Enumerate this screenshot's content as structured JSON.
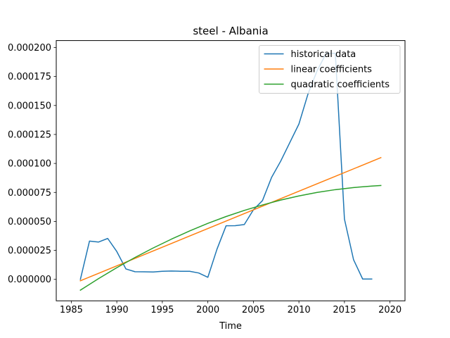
{
  "chart_data": {
    "type": "line",
    "title": "steel - Albania",
    "xlabel": "Time",
    "ylabel": "",
    "xlim": [
      1983.35,
      2021.65
    ],
    "ylim": [
      -1.85e-05,
      0.000206
    ],
    "xticks": [
      1985,
      1990,
      1995,
      2000,
      2005,
      2010,
      2015,
      2020
    ],
    "xtick_labels": [
      "1985",
      "1990",
      "1995",
      "2000",
      "2005",
      "2010",
      "2015",
      "2020"
    ],
    "yticks": [
      0.0,
      2.5e-05,
      5e-05,
      7.5e-05,
      0.0001,
      0.000125,
      0.00015,
      0.000175,
      0.0002
    ],
    "ytick_labels": [
      "0.000000",
      "0.000025",
      "0.000050",
      "0.000075",
      "0.000100",
      "0.000125",
      "0.000150",
      "0.000175",
      "0.000200"
    ],
    "grid": false,
    "legend_position": "top-right",
    "series": [
      {
        "name": "historical data",
        "color": "#1f77b4",
        "x": [
          1986,
          1987,
          1988,
          1989,
          1990,
          1991,
          1992,
          1993,
          1994,
          1995,
          1996,
          1997,
          1998,
          1999,
          2000,
          2001,
          2002,
          2003,
          2004,
          2005,
          2006,
          2007,
          2008,
          2009,
          2010,
          2011,
          2012,
          2013,
          2014,
          2015,
          2016,
          2017,
          2018
        ],
        "y": [
          0.0,
          3.3e-05,
          3.22e-05,
          3.53e-05,
          2.4e-05,
          9e-06,
          6.6e-06,
          6.5e-06,
          6.4e-06,
          7e-06,
          7.2e-06,
          7e-06,
          7e-06,
          5.5e-06,
          1.8e-06,
          2.6e-05,
          4.62e-05,
          4.63e-05,
          4.73e-05,
          6e-05,
          6.8e-05,
          8.8e-05,
          0.000102,
          0.000118,
          0.000134,
          0.00016,
          0.00018,
          0.000195,
          0.000195,
          5.2e-05,
          1.7e-05,
          3e-07,
          3e-07
        ]
      },
      {
        "name": "linear coefficients",
        "color": "#ff7f0e",
        "x": [
          1986,
          2019
        ],
        "y": [
          -1.2e-06,
          0.000105
        ]
      },
      {
        "name": "quadratic coefficients",
        "color": "#2ca02c",
        "x": [
          1986,
          1988,
          1990,
          1992,
          1994,
          1996,
          1998,
          2000,
          2002,
          2004,
          2006,
          2008,
          2010,
          2012,
          2014,
          2016,
          2018,
          2019
        ],
        "y": [
          -9.3e-06,
          7e-07,
          1.01e-05,
          1.89e-05,
          2.71e-05,
          3.47e-05,
          4.18e-05,
          4.83e-05,
          5.42e-05,
          5.95e-05,
          6.42e-05,
          6.84e-05,
          7.2e-05,
          7.5e-05,
          7.74e-05,
          7.92e-05,
          8.05e-05,
          8.1e-05
        ]
      }
    ]
  }
}
